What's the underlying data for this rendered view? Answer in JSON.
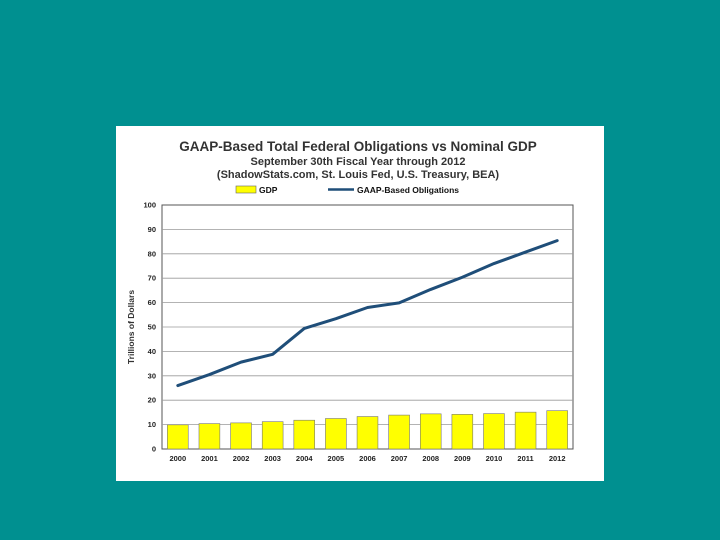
{
  "slide": {
    "background": "#009090"
  },
  "chart_data": {
    "type": "bar",
    "title": "GAAP-Based Total Federal Obligations vs Nominal GDP",
    "subtitle": "September 30th Fiscal Year through 2012",
    "source": "(ShadowStats.com, St. Louis Fed, U.S. Treasury, BEA)",
    "ylabel": "Trillions of Dollars",
    "xlabel": "",
    "ylim": [
      0,
      100
    ],
    "yticks": [
      "0",
      "10",
      "20",
      "30",
      "40",
      "50",
      "60",
      "70",
      "80",
      "90",
      "100"
    ],
    "grid": true,
    "legend_position": "top",
    "categories": [
      "2000",
      "2001",
      "2002",
      "2003",
      "2004",
      "2005",
      "2006",
      "2007",
      "2008",
      "2009",
      "2010",
      "2011",
      "2012"
    ],
    "series": [
      {
        "name": "GDP",
        "type": "bar",
        "color": "#ffff00",
        "values": [
          9.9,
          10.4,
          10.7,
          11.2,
          11.8,
          12.5,
          13.3,
          13.9,
          14.4,
          14.2,
          14.5,
          15.1,
          15.7
        ]
      },
      {
        "name": "GAAP-Based Obligations",
        "type": "line",
        "color": "#1f4e79",
        "values": [
          26.0,
          30.5,
          35.6,
          38.8,
          49.4,
          53.4,
          58.0,
          59.9,
          65.4,
          70.4,
          76.0,
          80.7,
          85.4
        ]
      }
    ]
  }
}
